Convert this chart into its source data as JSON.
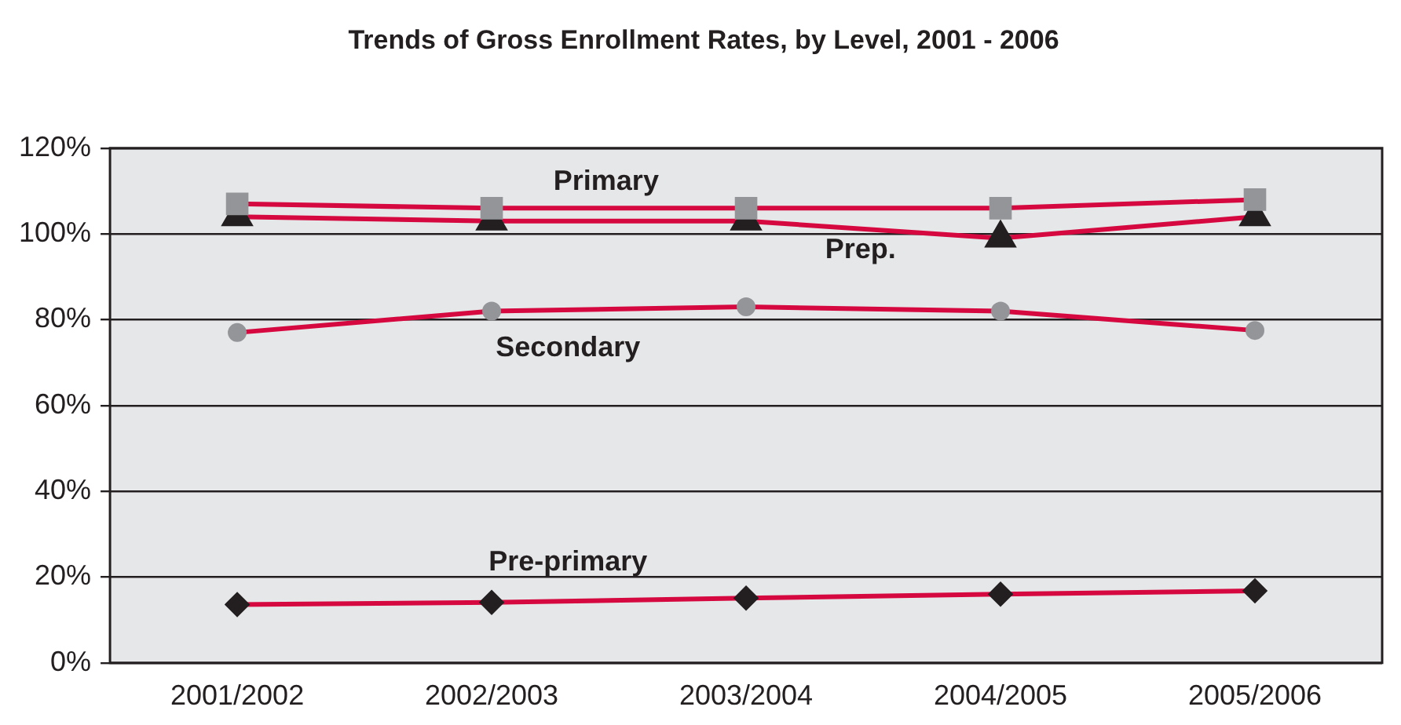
{
  "chart_data": {
    "type": "line",
    "title": "Trends of Gross Enrollment Rates, by Level, 2001 - 2006",
    "categories": [
      "2001/2002",
      "2002/2003",
      "2003/2004",
      "2004/2005",
      "2005/2006"
    ],
    "series": [
      {
        "name": "Primary",
        "color": "#d5093f",
        "marker": "square",
        "colors": [
          "#939598",
          "#939598",
          "#939598",
          "#939598",
          "#939598"
        ],
        "values": [
          107,
          106,
          106,
          106,
          108
        ]
      },
      {
        "name": "Prep.",
        "color": "#d5093f",
        "marker": "triangle",
        "colors": [
          "#231f20",
          "#231f20",
          "#231f20",
          "#231f20",
          "#231f20"
        ],
        "values": [
          104,
          103,
          103,
          99,
          104
        ]
      },
      {
        "name": "Secondary",
        "color": "#d5093f",
        "marker": "circle",
        "colors": [
          "#939598",
          "#939598",
          "#939598",
          "#939598",
          "#939598"
        ],
        "values": [
          77,
          82,
          83,
          82,
          77.5
        ]
      },
      {
        "name": "Pre-primary",
        "color": "#d5093f",
        "marker": "diamond",
        "colors": [
          "#231f20",
          "#231f20",
          "#231f20",
          "#231f20",
          "#231f20"
        ],
        "values": [
          13.6,
          14.1,
          15.1,
          16,
          16.8
        ]
      }
    ],
    "ylim": [
      0,
      120
    ],
    "yticks": [
      {
        "value": 0,
        "label": "0%"
      },
      {
        "value": 20,
        "label": "20%"
      },
      {
        "value": 40,
        "label": "40%"
      },
      {
        "value": 60,
        "label": "60%"
      },
      {
        "value": 80,
        "label": "80%"
      },
      {
        "value": 100,
        "label": "100%"
      },
      {
        "value": 120,
        "label": "120%"
      }
    ],
    "grid": "y",
    "legend": false
  }
}
